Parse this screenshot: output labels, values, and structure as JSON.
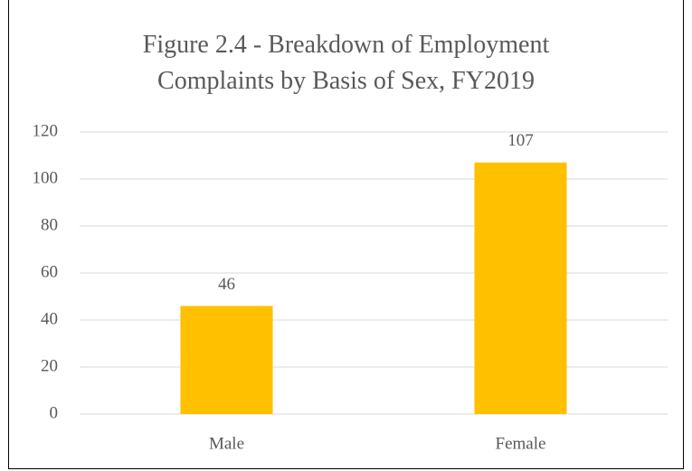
{
  "chart_data": {
    "type": "bar",
    "title": "Figure 2.4 - Breakdown of Employment Complaints by Basis of Sex, FY2019",
    "categories": [
      "Male",
      "Female"
    ],
    "values": [
      46,
      107
    ],
    "color": "#ffc000",
    "ylim": [
      0,
      120
    ],
    "yticks": [
      0,
      20,
      40,
      60,
      80,
      100,
      120
    ],
    "grid": true
  }
}
